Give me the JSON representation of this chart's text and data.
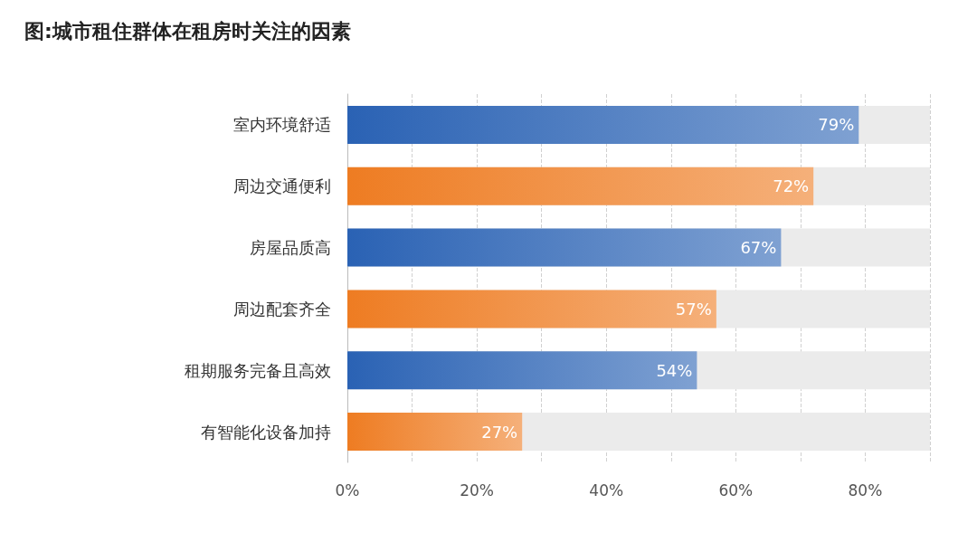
{
  "chart_data": {
    "type": "bar",
    "orientation": "horizontal",
    "title": "图:城市租住群体在租房时关注的因素",
    "categories": [
      "室内环境舒适",
      "周边交通便利",
      "房屋品质高",
      "周边配套齐全",
      "租期服务完备且高效",
      "有智能化设备加持"
    ],
    "values": [
      79,
      72,
      67,
      57,
      54,
      27
    ],
    "value_labels": [
      "79%",
      "72%",
      "67%",
      "57%",
      "54%",
      "27%"
    ],
    "colors": [
      "#2a62b4",
      "#ee7c22",
      "#2a62b4",
      "#ee7c22",
      "#2a62b4",
      "#ee7c22"
    ],
    "xlim": [
      0,
      90
    ],
    "xticks": [
      {
        "value": 0,
        "label": "0%"
      },
      {
        "value": 10,
        "label": null
      },
      {
        "value": 20,
        "label": "20%"
      },
      {
        "value": 30,
        "label": null
      },
      {
        "value": 40,
        "label": "40%"
      },
      {
        "value": 50,
        "label": null
      },
      {
        "value": 60,
        "label": "60%"
      },
      {
        "value": 70,
        "label": null
      },
      {
        "value": 80,
        "label": "80%"
      },
      {
        "value": 90,
        "label": null
      }
    ],
    "grid": "x"
  }
}
